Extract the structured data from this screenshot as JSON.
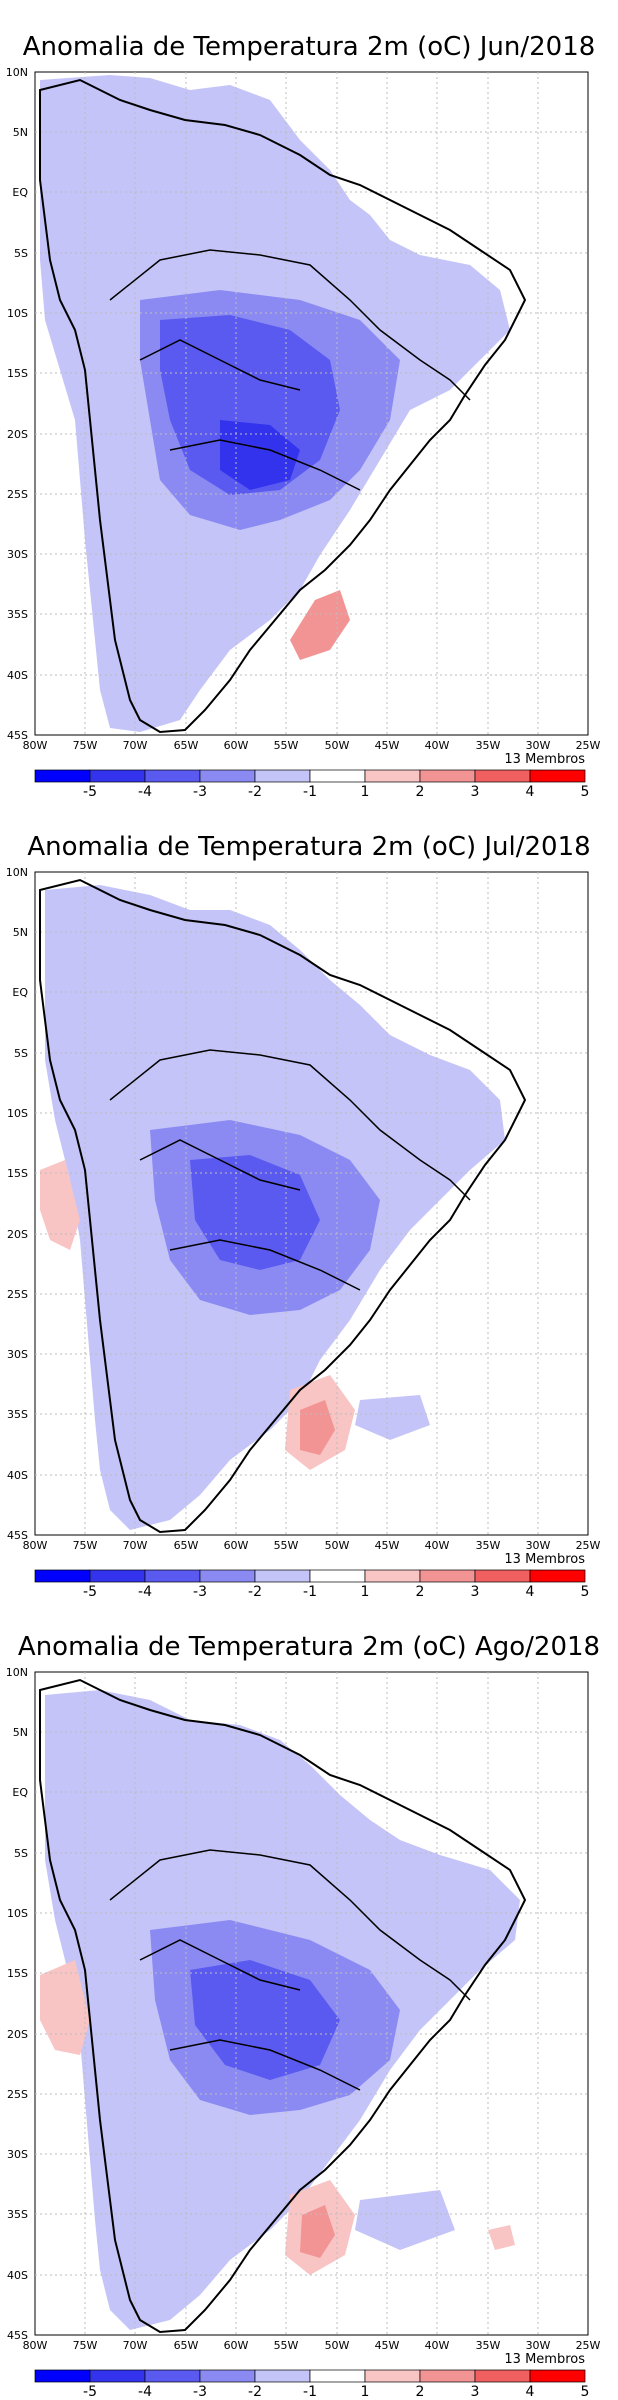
{
  "panels": [
    {
      "title": "Anomalia de Temperatura 2m (oC) Jun/2018",
      "members": "13 Membros"
    },
    {
      "title": "Anomalia de Temperatura 2m (oC) Jul/2018",
      "members": "13 Membros"
    },
    {
      "title": "Anomalia de Temperatura 2m (oC) Ago/2018",
      "members": "13 Membros"
    }
  ],
  "map": {
    "lat_ticks": [
      "10N",
      "5N",
      "EQ",
      "5S",
      "10S",
      "15S",
      "20S",
      "25S",
      "30S",
      "35S",
      "40S",
      "45S"
    ],
    "lon_ticks": [
      "80W",
      "75W",
      "70W",
      "65W",
      "60W",
      "55W",
      "50W",
      "45W",
      "40W",
      "35W",
      "30W",
      "25W"
    ],
    "lat_range": [
      -45,
      10
    ],
    "lon_range": [
      -80,
      -25
    ],
    "grid": true
  },
  "colorbar": {
    "labels": [
      "-5",
      "-4",
      "-3",
      "-2",
      "-1",
      "1",
      "2",
      "3",
      "4",
      "5"
    ],
    "colors": [
      "#0000ff",
      "#3333ee",
      "#5a5af0",
      "#8a8af2",
      "#c4c4f8",
      "#ffffff",
      "#f8c4c4",
      "#f29494",
      "#f06060",
      "#ff0000"
    ]
  },
  "legend_colors": {
    "strong_cool": "#5a5af0",
    "moderate_cool": "#8a8af2",
    "weak_cool": "#c4c4f8",
    "weak_warm": "#f8c4c4",
    "moderate_warm": "#f29494"
  }
}
